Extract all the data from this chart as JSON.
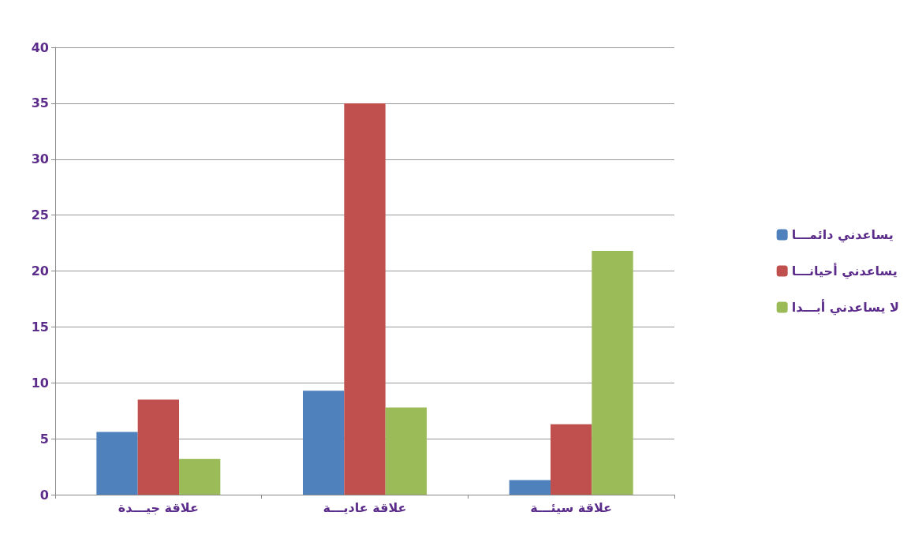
{
  "chart_data": {
    "type": "bar",
    "categories": [
      "علاقة جيـــدة",
      "علاقة عاديـــة",
      "علاقة سيئـــة"
    ],
    "series": [
      {
        "name": "يساعدني دائمـــا",
        "color": "#4f81bd",
        "values": [
          5.6,
          9.3,
          1.3
        ]
      },
      {
        "name": "يساعدني أحيانـــا",
        "color": "#c0504d",
        "values": [
          8.5,
          35,
          6.3
        ]
      },
      {
        "name": "لا يساعدني أبـــدا",
        "color": "#9bbb59",
        "values": [
          3.2,
          7.8,
          21.8
        ]
      }
    ],
    "ylim": [
      0,
      40
    ],
    "yticks": [
      0,
      5,
      10,
      15,
      20,
      25,
      30,
      35,
      40
    ],
    "grid": "y",
    "legend": "right"
  }
}
